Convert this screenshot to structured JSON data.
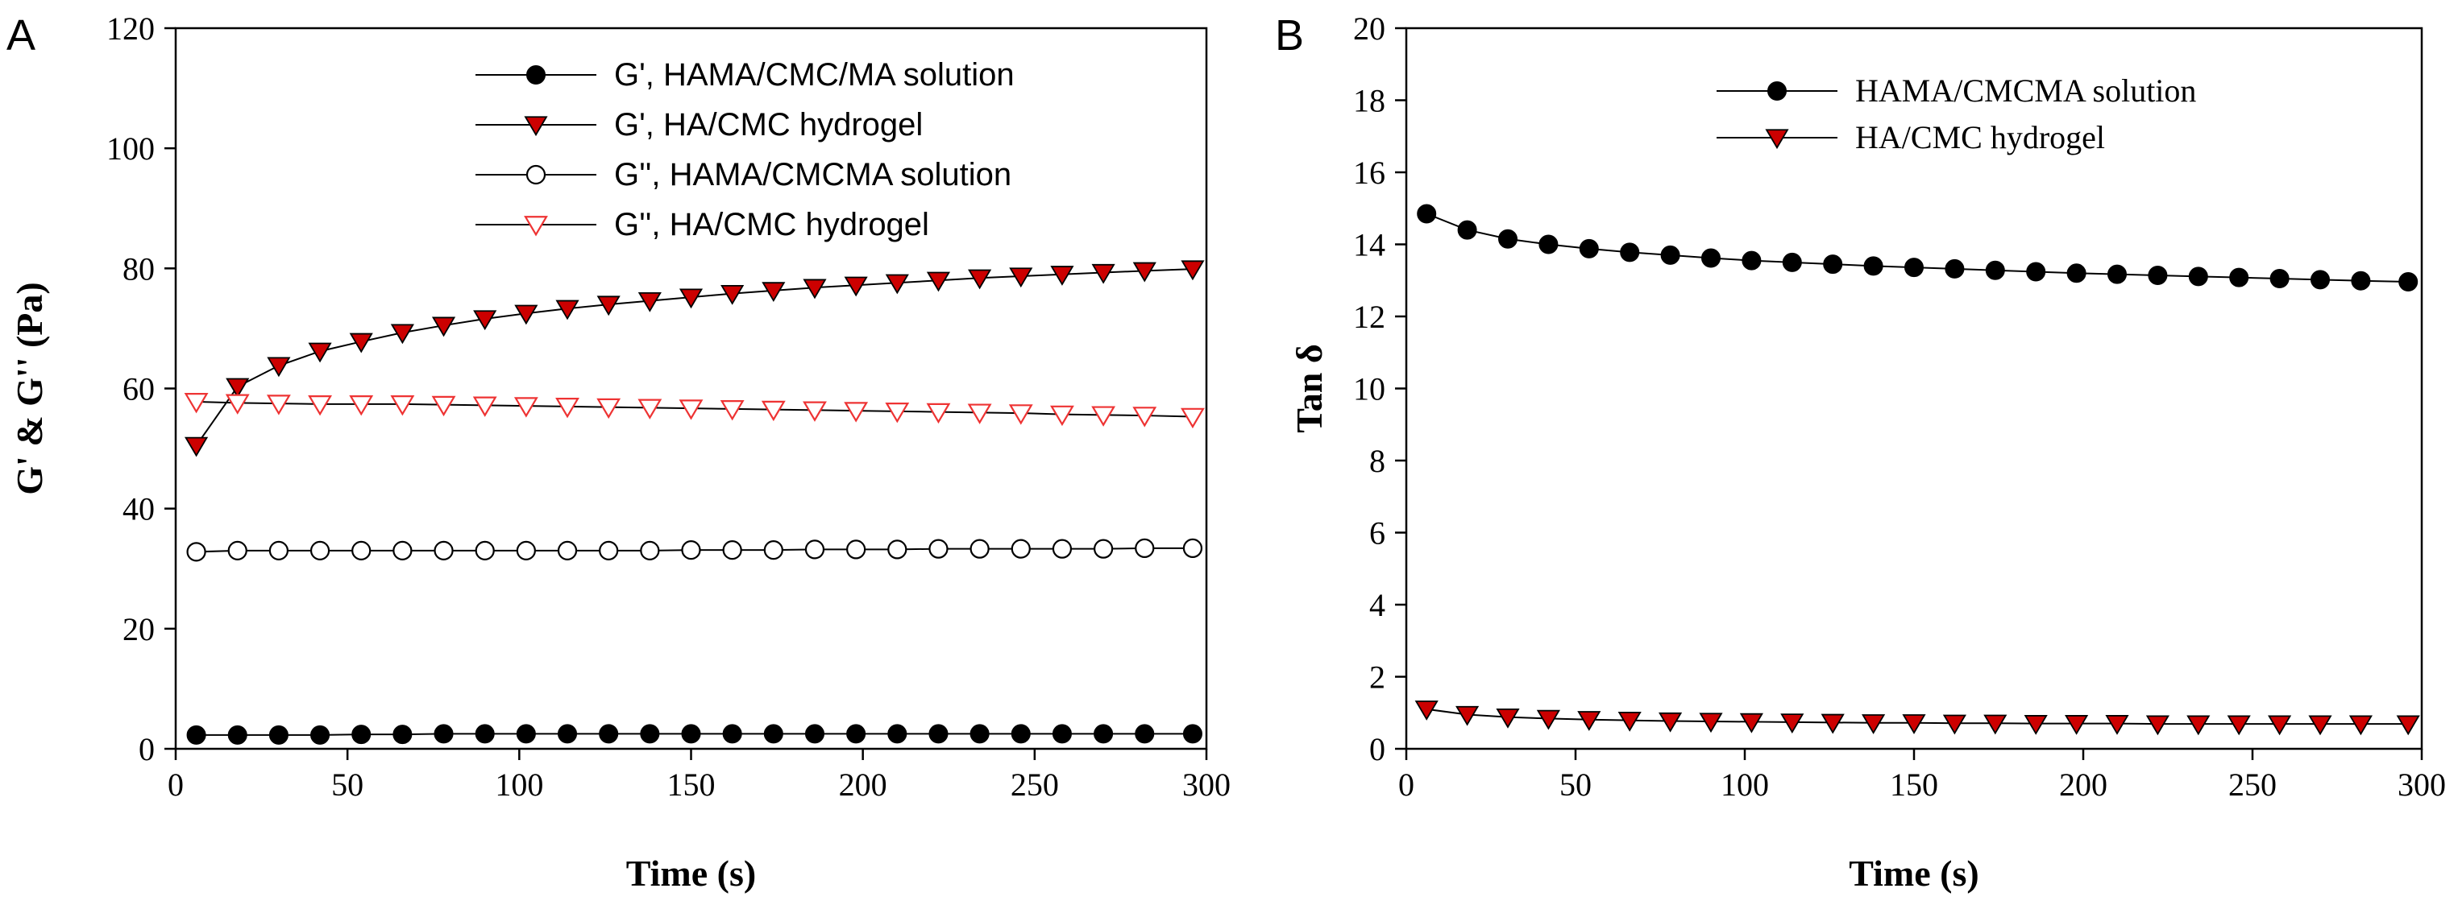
{
  "chart_data": [
    {
      "type": "line",
      "panel_label": "A",
      "xlabel": "Time (s)",
      "ylabel": "G' & G'' (Pa)",
      "xlim": [
        0,
        300
      ],
      "ylim": [
        0,
        120
      ],
      "xticks": [
        0,
        50,
        100,
        150,
        200,
        250,
        300
      ],
      "yticks": [
        0,
        20,
        40,
        60,
        80,
        100,
        120
      ],
      "legend_position": "top-right",
      "x": [
        6,
        18,
        30,
        42,
        54,
        66,
        78,
        90,
        102,
        114,
        126,
        138,
        150,
        162,
        174,
        186,
        198,
        210,
        222,
        234,
        246,
        258,
        270,
        282,
        296
      ],
      "series": [
        {
          "name": "G', HAMA/CMC/MA solution",
          "marker": "circle-filled",
          "color": "#000000",
          "values": [
            2.3,
            2.3,
            2.3,
            2.3,
            2.4,
            2.4,
            2.5,
            2.5,
            2.5,
            2.5,
            2.5,
            2.5,
            2.5,
            2.5,
            2.5,
            2.5,
            2.5,
            2.5,
            2.5,
            2.5,
            2.5,
            2.5,
            2.5,
            2.5,
            2.5
          ]
        },
        {
          "name": "G', HA/CMC hydrogel",
          "marker": "triangle-down-filled",
          "color": "#cc0000",
          "values": [
            50.5,
            60.3,
            63.8,
            66.2,
            67.8,
            69.3,
            70.5,
            71.6,
            72.5,
            73.3,
            74.0,
            74.6,
            75.2,
            75.8,
            76.3,
            76.8,
            77.2,
            77.6,
            78.0,
            78.4,
            78.7,
            79.0,
            79.3,
            79.6,
            79.9
          ]
        },
        {
          "name": "G'', HAMA/CMCMA solution",
          "marker": "circle-open",
          "color": "#000000",
          "values": [
            32.8,
            33.0,
            33.0,
            33.0,
            33.0,
            33.0,
            33.0,
            33.0,
            33.0,
            33.0,
            33.0,
            33.0,
            33.1,
            33.1,
            33.1,
            33.2,
            33.2,
            33.2,
            33.3,
            33.3,
            33.3,
            33.3,
            33.3,
            33.4,
            33.4
          ]
        },
        {
          "name": "G'', HA/CMC hydrogel",
          "marker": "triangle-down-open",
          "color": "#ee3333",
          "values": [
            57.8,
            57.6,
            57.5,
            57.4,
            57.4,
            57.4,
            57.3,
            57.2,
            57.1,
            57.0,
            56.9,
            56.8,
            56.7,
            56.6,
            56.5,
            56.4,
            56.3,
            56.2,
            56.1,
            56.0,
            55.9,
            55.7,
            55.6,
            55.5,
            55.3
          ]
        }
      ]
    },
    {
      "type": "line",
      "panel_label": "B",
      "xlabel": "Time (s)",
      "ylabel": "Tan δ",
      "xlim": [
        0,
        300
      ],
      "ylim": [
        0,
        20
      ],
      "xticks": [
        0,
        50,
        100,
        150,
        200,
        250,
        300
      ],
      "yticks": [
        0,
        2,
        4,
        6,
        8,
        10,
        12,
        14,
        16,
        18,
        20
      ],
      "legend_position": "top-right",
      "x": [
        6,
        18,
        30,
        42,
        54,
        66,
        78,
        90,
        102,
        114,
        126,
        138,
        150,
        162,
        174,
        186,
        198,
        210,
        222,
        234,
        246,
        258,
        270,
        282,
        296
      ],
      "series": [
        {
          "name": "HAMA/CMCMA solution",
          "marker": "circle-filled",
          "color": "#000000",
          "values": [
            14.85,
            14.4,
            14.15,
            14.0,
            13.88,
            13.78,
            13.7,
            13.62,
            13.55,
            13.5,
            13.45,
            13.4,
            13.36,
            13.32,
            13.28,
            13.24,
            13.2,
            13.17,
            13.14,
            13.11,
            13.08,
            13.05,
            13.02,
            12.99,
            12.96
          ]
        },
        {
          "name": "HA/CMC hydrogel",
          "marker": "triangle-down-filled",
          "color": "#cc0000",
          "values": [
            1.1,
            0.95,
            0.88,
            0.84,
            0.81,
            0.79,
            0.77,
            0.76,
            0.75,
            0.74,
            0.73,
            0.72,
            0.72,
            0.71,
            0.71,
            0.7,
            0.7,
            0.7,
            0.69,
            0.69,
            0.69,
            0.69,
            0.69,
            0.69,
            0.69
          ]
        }
      ]
    }
  ]
}
